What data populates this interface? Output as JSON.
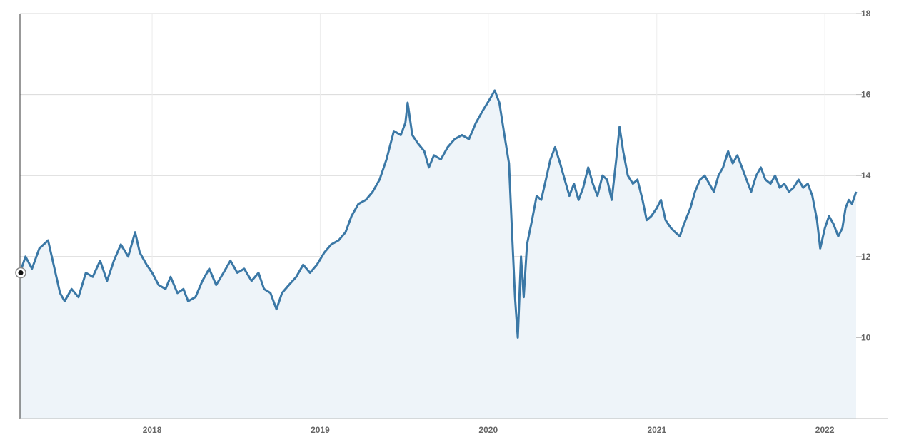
{
  "chart_data": {
    "type": "area",
    "title": "",
    "xlabel": "",
    "ylabel": "",
    "x_range": [
      "2017-03-20",
      "2022-03-10"
    ],
    "ylim": [
      8,
      18
    ],
    "y_ticks": [
      10,
      12,
      14,
      16,
      18
    ],
    "x_ticks": [
      "2018",
      "2019",
      "2020",
      "2021",
      "2022"
    ],
    "x_tick_dates": [
      "2018-01-01",
      "2019-01-01",
      "2020-01-01",
      "2021-01-01",
      "2022-01-01"
    ],
    "y_axis_position": "right",
    "grid": true,
    "line_color": "#3b78a6",
    "fill_color": "#eef4f9",
    "series": [
      {
        "name": "",
        "points": [
          [
            "2017-03-20",
            11.6
          ],
          [
            "2017-04-01",
            12.0
          ],
          [
            "2017-04-15",
            11.7
          ],
          [
            "2017-05-01",
            12.2
          ],
          [
            "2017-05-20",
            12.4
          ],
          [
            "2017-06-01",
            11.8
          ],
          [
            "2017-06-15",
            11.1
          ],
          [
            "2017-06-25",
            10.9
          ],
          [
            "2017-07-10",
            11.2
          ],
          [
            "2017-07-25",
            11.0
          ],
          [
            "2017-08-10",
            11.6
          ],
          [
            "2017-08-25",
            11.5
          ],
          [
            "2017-09-10",
            11.9
          ],
          [
            "2017-09-25",
            11.4
          ],
          [
            "2017-10-10",
            11.9
          ],
          [
            "2017-10-25",
            12.3
          ],
          [
            "2017-11-10",
            12.0
          ],
          [
            "2017-11-25",
            12.6
          ],
          [
            "2017-12-05",
            12.1
          ],
          [
            "2017-12-20",
            11.8
          ],
          [
            "2018-01-01",
            11.6
          ],
          [
            "2018-01-15",
            11.3
          ],
          [
            "2018-01-30",
            11.2
          ],
          [
            "2018-02-10",
            11.5
          ],
          [
            "2018-02-25",
            11.1
          ],
          [
            "2018-03-10",
            11.2
          ],
          [
            "2018-03-20",
            10.9
          ],
          [
            "2018-04-05",
            11.0
          ],
          [
            "2018-04-20",
            11.4
          ],
          [
            "2018-05-05",
            11.7
          ],
          [
            "2018-05-20",
            11.3
          ],
          [
            "2018-06-05",
            11.6
          ],
          [
            "2018-06-20",
            11.9
          ],
          [
            "2018-07-05",
            11.6
          ],
          [
            "2018-07-20",
            11.7
          ],
          [
            "2018-08-05",
            11.4
          ],
          [
            "2018-08-20",
            11.6
          ],
          [
            "2018-09-01",
            11.2
          ],
          [
            "2018-09-15",
            11.1
          ],
          [
            "2018-09-28",
            10.7
          ],
          [
            "2018-10-10",
            11.1
          ],
          [
            "2018-10-25",
            11.3
          ],
          [
            "2018-11-10",
            11.5
          ],
          [
            "2018-11-25",
            11.8
          ],
          [
            "2018-12-10",
            11.6
          ],
          [
            "2018-12-25",
            11.8
          ],
          [
            "2019-01-10",
            12.1
          ],
          [
            "2019-01-25",
            12.3
          ],
          [
            "2019-02-10",
            12.4
          ],
          [
            "2019-02-25",
            12.6
          ],
          [
            "2019-03-10",
            13.0
          ],
          [
            "2019-03-25",
            13.3
          ],
          [
            "2019-04-10",
            13.4
          ],
          [
            "2019-04-25",
            13.6
          ],
          [
            "2019-05-10",
            13.9
          ],
          [
            "2019-05-25",
            14.4
          ],
          [
            "2019-06-10",
            15.1
          ],
          [
            "2019-06-25",
            15.0
          ],
          [
            "2019-07-05",
            15.3
          ],
          [
            "2019-07-10",
            15.8
          ],
          [
            "2019-07-20",
            15.0
          ],
          [
            "2019-08-01",
            14.8
          ],
          [
            "2019-08-15",
            14.6
          ],
          [
            "2019-08-25",
            14.2
          ],
          [
            "2019-09-05",
            14.5
          ],
          [
            "2019-09-20",
            14.4
          ],
          [
            "2019-10-05",
            14.7
          ],
          [
            "2019-10-20",
            14.9
          ],
          [
            "2019-11-05",
            15.0
          ],
          [
            "2019-11-20",
            14.9
          ],
          [
            "2019-12-05",
            15.3
          ],
          [
            "2019-12-20",
            15.6
          ],
          [
            "2020-01-05",
            15.9
          ],
          [
            "2020-01-15",
            16.1
          ],
          [
            "2020-01-25",
            15.8
          ],
          [
            "2020-02-05",
            15.0
          ],
          [
            "2020-02-15",
            14.3
          ],
          [
            "2020-02-22",
            12.5
          ],
          [
            "2020-02-28",
            11.0
          ],
          [
            "2020-03-05",
            10.0
          ],
          [
            "2020-03-12",
            12.0
          ],
          [
            "2020-03-18",
            11.0
          ],
          [
            "2020-03-25",
            12.3
          ],
          [
            "2020-04-05",
            12.9
          ],
          [
            "2020-04-15",
            13.5
          ],
          [
            "2020-04-25",
            13.4
          ],
          [
            "2020-05-05",
            13.9
          ],
          [
            "2020-05-15",
            14.4
          ],
          [
            "2020-05-25",
            14.7
          ],
          [
            "2020-06-05",
            14.3
          ],
          [
            "2020-06-15",
            13.9
          ],
          [
            "2020-06-25",
            13.5
          ],
          [
            "2020-07-05",
            13.8
          ],
          [
            "2020-07-15",
            13.4
          ],
          [
            "2020-07-25",
            13.7
          ],
          [
            "2020-08-05",
            14.2
          ],
          [
            "2020-08-15",
            13.8
          ],
          [
            "2020-08-25",
            13.5
          ],
          [
            "2020-09-05",
            14.0
          ],
          [
            "2020-09-15",
            13.9
          ],
          [
            "2020-09-25",
            13.4
          ],
          [
            "2020-10-05",
            14.4
          ],
          [
            "2020-10-12",
            15.2
          ],
          [
            "2020-10-20",
            14.6
          ],
          [
            "2020-10-30",
            14.0
          ],
          [
            "2020-11-10",
            13.8
          ],
          [
            "2020-11-20",
            13.9
          ],
          [
            "2020-12-01",
            13.4
          ],
          [
            "2020-12-10",
            12.9
          ],
          [
            "2020-12-20",
            13.0
          ],
          [
            "2021-01-01",
            13.2
          ],
          [
            "2021-01-10",
            13.4
          ],
          [
            "2021-01-20",
            12.9
          ],
          [
            "2021-02-01",
            12.7
          ],
          [
            "2021-02-10",
            12.6
          ],
          [
            "2021-02-20",
            12.5
          ],
          [
            "2021-03-01",
            12.8
          ],
          [
            "2021-03-15",
            13.2
          ],
          [
            "2021-03-25",
            13.6
          ],
          [
            "2021-04-05",
            13.9
          ],
          [
            "2021-04-15",
            14.0
          ],
          [
            "2021-04-25",
            13.8
          ],
          [
            "2021-05-05",
            13.6
          ],
          [
            "2021-05-15",
            14.0
          ],
          [
            "2021-05-25",
            14.2
          ],
          [
            "2021-06-05",
            14.6
          ],
          [
            "2021-06-15",
            14.3
          ],
          [
            "2021-06-25",
            14.5
          ],
          [
            "2021-07-05",
            14.2
          ],
          [
            "2021-07-15",
            13.9
          ],
          [
            "2021-07-25",
            13.6
          ],
          [
            "2021-08-05",
            14.0
          ],
          [
            "2021-08-15",
            14.2
          ],
          [
            "2021-08-25",
            13.9
          ],
          [
            "2021-09-05",
            13.8
          ],
          [
            "2021-09-15",
            14.0
          ],
          [
            "2021-09-25",
            13.7
          ],
          [
            "2021-10-05",
            13.8
          ],
          [
            "2021-10-15",
            13.6
          ],
          [
            "2021-10-25",
            13.7
          ],
          [
            "2021-11-05",
            13.9
          ],
          [
            "2021-11-15",
            13.7
          ],
          [
            "2021-11-25",
            13.8
          ],
          [
            "2021-12-05",
            13.5
          ],
          [
            "2021-12-15",
            12.9
          ],
          [
            "2021-12-22",
            12.2
          ],
          [
            "2022-01-01",
            12.7
          ],
          [
            "2022-01-10",
            13.0
          ],
          [
            "2022-01-20",
            12.8
          ],
          [
            "2022-01-30",
            12.5
          ],
          [
            "2022-02-08",
            12.7
          ],
          [
            "2022-02-15",
            13.2
          ],
          [
            "2022-02-22",
            13.4
          ],
          [
            "2022-03-01",
            13.3
          ],
          [
            "2022-03-10",
            13.6
          ]
        ]
      }
    ]
  }
}
